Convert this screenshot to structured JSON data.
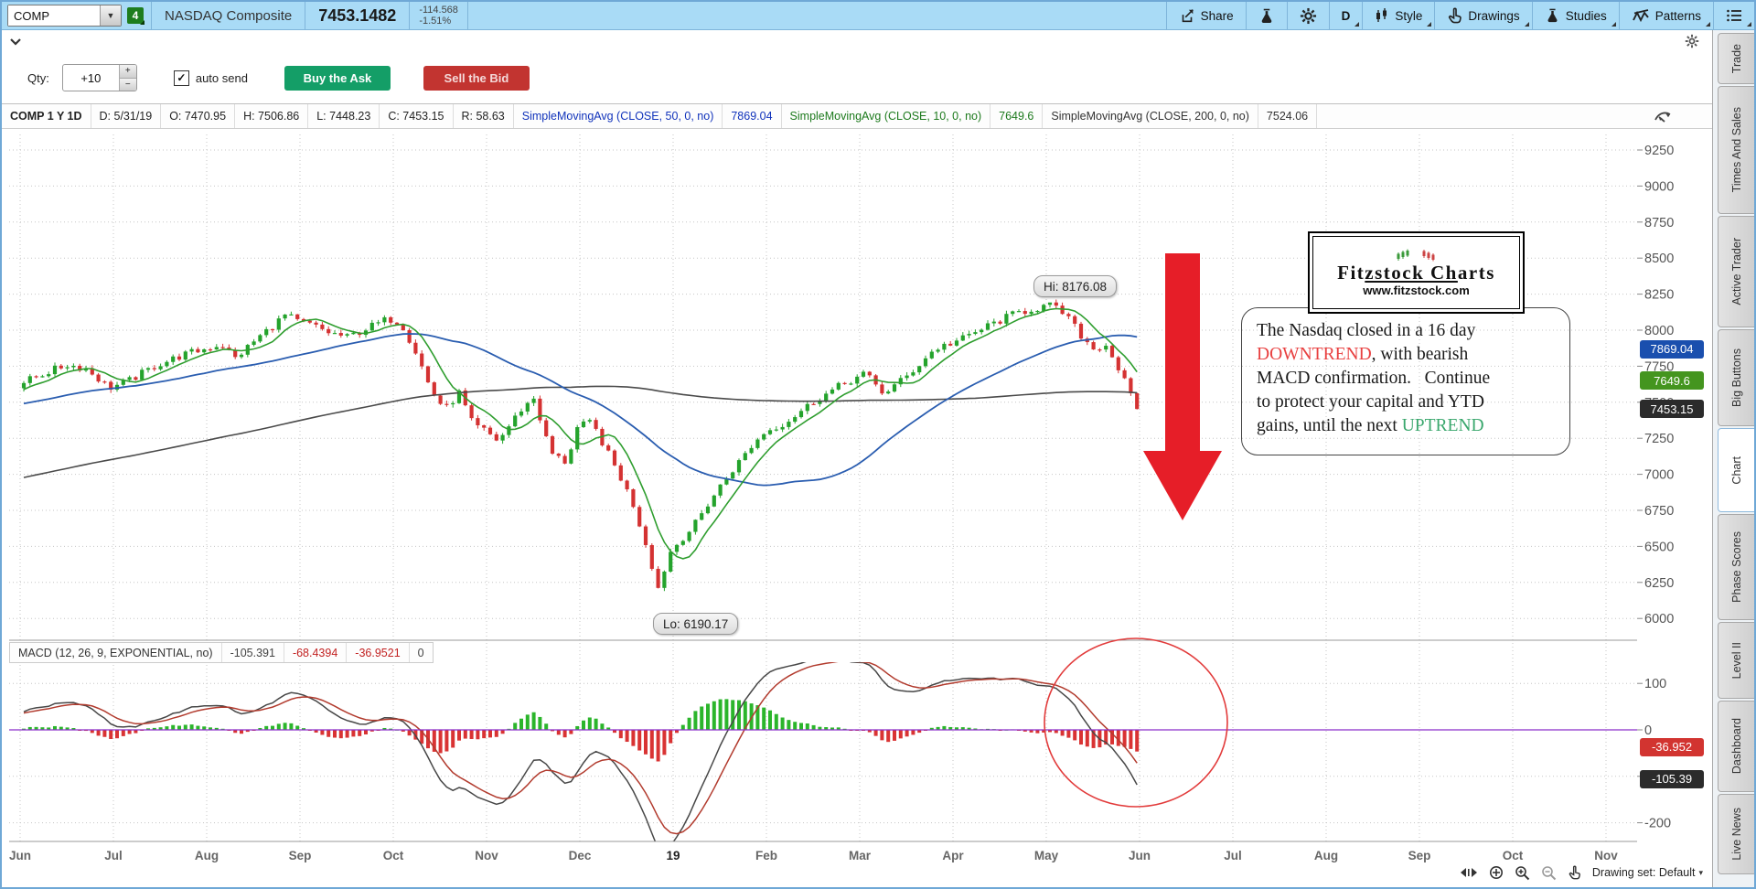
{
  "toolbar": {
    "symbol": "COMP",
    "linked_badge": "4",
    "instrument_name": "NASDAQ Composite",
    "last_price": "7453.1482",
    "change": "-114.568",
    "change_pct": "-1.51%",
    "share_label": "Share",
    "timeframe_label": "D",
    "style_label": "Style",
    "drawings_label": "Drawings",
    "studies_label": "Studies",
    "patterns_label": "Patterns"
  },
  "order_row": {
    "qty_label": "Qty:",
    "qty_value": "+10",
    "auto_send_label": "auto send",
    "buy_label": "Buy the Ask",
    "sell_label": "Sell the Bid"
  },
  "chart_header": {
    "id": "COMP 1 Y 1D",
    "date": "D: 5/31/19",
    "open": "O: 7470.95",
    "high": "H: 7506.86",
    "low": "L: 7448.23",
    "close": "C: 7453.15",
    "range": "R: 58.63",
    "sma50_label": "SimpleMovingAvg (CLOSE, 50, 0, no)",
    "sma50_value": "7869.04",
    "sma10_label": "SimpleMovingAvg (CLOSE, 10, 0, no)",
    "sma10_value": "7649.6",
    "sma200_label": "SimpleMovingAvg (CLOSE, 200, 0, no)",
    "sma200_value": "7524.06"
  },
  "macd_header": {
    "label": "MACD (12, 26, 9, EXPONENTIAL, no)",
    "value": "-105.391",
    "avg": "-68.4394",
    "diff": "-36.9521",
    "zero": "0"
  },
  "price_axis": {
    "badges": [
      {
        "text": "7869.04",
        "color": "#1a4fae",
        "value": 7869.04
      },
      {
        "text": "7649.6",
        "color": "#44951f",
        "value": 7649.6
      },
      {
        "text": "7453.15",
        "color": "#2b2b2b",
        "value": 7453.15
      }
    ]
  },
  "macd_axis": {
    "badges": [
      {
        "text": "-36.952",
        "color": "#d23430",
        "value": -36.952
      },
      {
        "text": "-105.39",
        "color": "#2b2b2b",
        "value": -105.39
      }
    ]
  },
  "annotations": {
    "hi_label": "Hi: 8176.08",
    "lo_label": "Lo: 6190.17",
    "logo": {
      "pre": "Fit",
      "mid": "zstock Ch",
      "post": "arts",
      "url": "www.fitzstock.com"
    },
    "note_lines": [
      [
        {
          "t": "The Nasdaq closed in a 16 day"
        }
      ],
      [
        {
          "t": "DOWNTREND",
          "c": "red"
        },
        {
          "t": ", with bearish"
        }
      ],
      [
        {
          "t": "MACD confirmation.   Continue"
        }
      ],
      [
        {
          "t": "to protect your capital and YTD"
        }
      ],
      [
        {
          "t": "gains, until the next "
        },
        {
          "t": "UPTREND",
          "c": "green"
        }
      ]
    ]
  },
  "status_bar": {
    "drawing_set_label": "Drawing set: Default"
  },
  "sidebar": {
    "active": "Chart",
    "tabs": [
      {
        "label": "Trade"
      },
      {
        "label": "Times And Sales"
      },
      {
        "label": "Active Trader"
      },
      {
        "label": "Big Buttons"
      },
      {
        "label": "Chart"
      },
      {
        "label": "Phase Scores"
      },
      {
        "label": "Level II"
      },
      {
        "label": "Dashboard"
      },
      {
        "label": "Live News"
      }
    ]
  },
  "colors": {
    "up": "#24a32c",
    "down": "#d43232",
    "sma10": "#2f9e2f",
    "sma50": "#2a5db0",
    "sma200": "#4a4a4a",
    "macd_value_line": "#474747",
    "macd_avg_line": "#b23b2e",
    "hist_pos": "#2bb52b",
    "hist_neg": "#d93333",
    "zero_line": "#8b2fc9",
    "arrow": "#e61e28",
    "annotation_red": "#e84040",
    "annotation_green": "#3aa76d",
    "grid": "#c6c6c6",
    "axis_text": "#555555"
  },
  "chart_data": {
    "type": "candlestick",
    "symbol": "COMP",
    "period": "1 Y 1D",
    "indicators": [
      "SMA 50",
      "SMA 10",
      "SMA 200",
      "MACD (12,26,9)"
    ],
    "key_points": {
      "high": 8176.08,
      "low": 6190.17,
      "close": 7453.15
    },
    "sma_values": {
      "sma50": 7869.04,
      "sma10": 7649.6,
      "sma200": 7524.06
    },
    "macd_values": {
      "value": -105.391,
      "avg": -68.4394,
      "diff": -36.9521
    },
    "y_ticks": [
      9250,
      9000,
      8750,
      8500,
      8250,
      8000,
      7750,
      7500,
      7250,
      7000,
      6750,
      6500,
      6250,
      6000
    ],
    "macd_ticks": [
      100,
      0,
      -100,
      -200
    ],
    "x_labels": [
      "Jun",
      "Jul",
      "Aug",
      "Sep",
      "Oct",
      "Nov",
      "Dec",
      "19",
      "Feb",
      "Mar",
      "Apr",
      "May",
      "Jun",
      "Jul",
      "Aug",
      "Sep",
      "Oct",
      "Nov"
    ],
    "anchors": [
      [
        0,
        7630
      ],
      [
        0.25,
        7700
      ],
      [
        0.5,
        7760
      ],
      [
        0.7,
        7735
      ],
      [
        0.95,
        7600
      ],
      [
        1.15,
        7645
      ],
      [
        1.45,
        7755
      ],
      [
        1.75,
        7830
      ],
      [
        1.95,
        7865
      ],
      [
        2.15,
        7905
      ],
      [
        2.3,
        7805
      ],
      [
        2.55,
        7950
      ],
      [
        2.85,
        8110
      ],
      [
        2.95,
        8060
      ],
      [
        3.1,
        8040
      ],
      [
        3.3,
        7985
      ],
      [
        3.5,
        7950
      ],
      [
        3.7,
        8010
      ],
      [
        3.95,
        8080
      ],
      [
        4.08,
        8050
      ],
      [
        4.25,
        7830
      ],
      [
        4.4,
        7580
      ],
      [
        4.55,
        7450
      ],
      [
        4.7,
        7565
      ],
      [
        4.85,
        7340
      ],
      [
        4.97,
        7305
      ],
      [
        5.12,
        7230
      ],
      [
        5.35,
        7440
      ],
      [
        5.5,
        7530
      ],
      [
        5.68,
        7150
      ],
      [
        5.85,
        7080
      ],
      [
        5.97,
        7330
      ],
      [
        6.12,
        7360
      ],
      [
        6.35,
        7080
      ],
      [
        6.55,
        6820
      ],
      [
        6.72,
        6480
      ],
      [
        6.83,
        6205
      ],
      [
        6.97,
        6470
      ],
      [
        7.2,
        6630
      ],
      [
        7.5,
        6920
      ],
      [
        7.8,
        7170
      ],
      [
        7.97,
        7290
      ],
      [
        8.2,
        7360
      ],
      [
        8.5,
        7505
      ],
      [
        8.8,
        7620
      ],
      [
        9.05,
        7700
      ],
      [
        9.25,
        7560
      ],
      [
        9.5,
        7680
      ],
      [
        9.8,
        7870
      ],
      [
        10.1,
        7940
      ],
      [
        10.4,
        8040
      ],
      [
        10.7,
        8125
      ],
      [
        10.93,
        8160
      ],
      [
        11.03,
        8170
      ],
      [
        11.2,
        8110
      ],
      [
        11.35,
        7975
      ],
      [
        11.5,
        7870
      ],
      [
        11.63,
        7905
      ],
      [
        11.78,
        7720
      ],
      [
        11.93,
        7505
      ],
      [
        12,
        7460
      ]
    ],
    "history_anchors": [
      [
        -10,
        6350
      ],
      [
        -8,
        6520
      ],
      [
        -6.5,
        6700
      ],
      [
        -5,
        6900
      ],
      [
        -3.5,
        7120
      ],
      [
        -2.4,
        7380
      ],
      [
        -1.5,
        7460
      ],
      [
        -0.8,
        7520
      ],
      [
        -0.3,
        7580
      ]
    ]
  }
}
